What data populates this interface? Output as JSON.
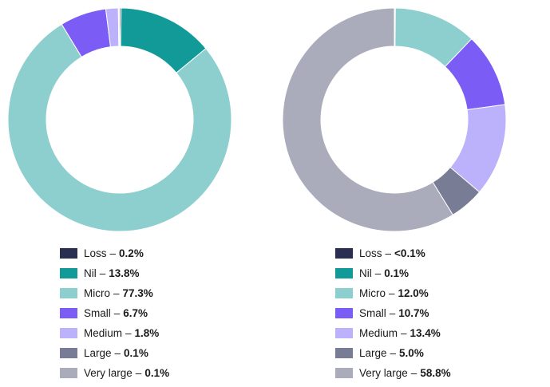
{
  "colors": {
    "loss": "#2a2f52",
    "nil": "#129a99",
    "micro": "#8ccfce",
    "small": "#7b5cf5",
    "medium": "#bcb2fb",
    "large": "#797c95",
    "very_large": "#aaabbb"
  },
  "chart_data": [
    {
      "type": "pie",
      "donut": true,
      "legend_position": "bottom",
      "slices": [
        {
          "name": "Loss",
          "value": 0.2,
          "label": "0.2%",
          "color_key": "loss"
        },
        {
          "name": "Nil",
          "value": 13.8,
          "label": "13.8%",
          "color_key": "nil"
        },
        {
          "name": "Micro",
          "value": 77.3,
          "label": "77.3%",
          "color_key": "micro"
        },
        {
          "name": "Small",
          "value": 6.7,
          "label": "6.7%",
          "color_key": "small"
        },
        {
          "name": "Medium",
          "value": 1.8,
          "label": "1.8%",
          "color_key": "medium"
        },
        {
          "name": "Large",
          "value": 0.1,
          "label": "0.1%",
          "color_key": "large"
        },
        {
          "name": "Very large",
          "value": 0.1,
          "label": "0.1%",
          "color_key": "very_large"
        }
      ]
    },
    {
      "type": "pie",
      "donut": true,
      "legend_position": "bottom",
      "slices": [
        {
          "name": "Loss",
          "value": 0.05,
          "label": "<0.1%",
          "color_key": "loss"
        },
        {
          "name": "Nil",
          "value": 0.1,
          "label": "0.1%",
          "color_key": "nil"
        },
        {
          "name": "Micro",
          "value": 12.0,
          "label": "12.0%",
          "color_key": "micro"
        },
        {
          "name": "Small",
          "value": 10.7,
          "label": "10.7%",
          "color_key": "small"
        },
        {
          "name": "Medium",
          "value": 13.4,
          "label": "13.4%",
          "color_key": "medium"
        },
        {
          "name": "Large",
          "value": 5.0,
          "label": "5.0%",
          "color_key": "large"
        },
        {
          "name": "Very large",
          "value": 58.8,
          "label": "58.8%",
          "color_key": "very_large"
        }
      ]
    }
  ]
}
